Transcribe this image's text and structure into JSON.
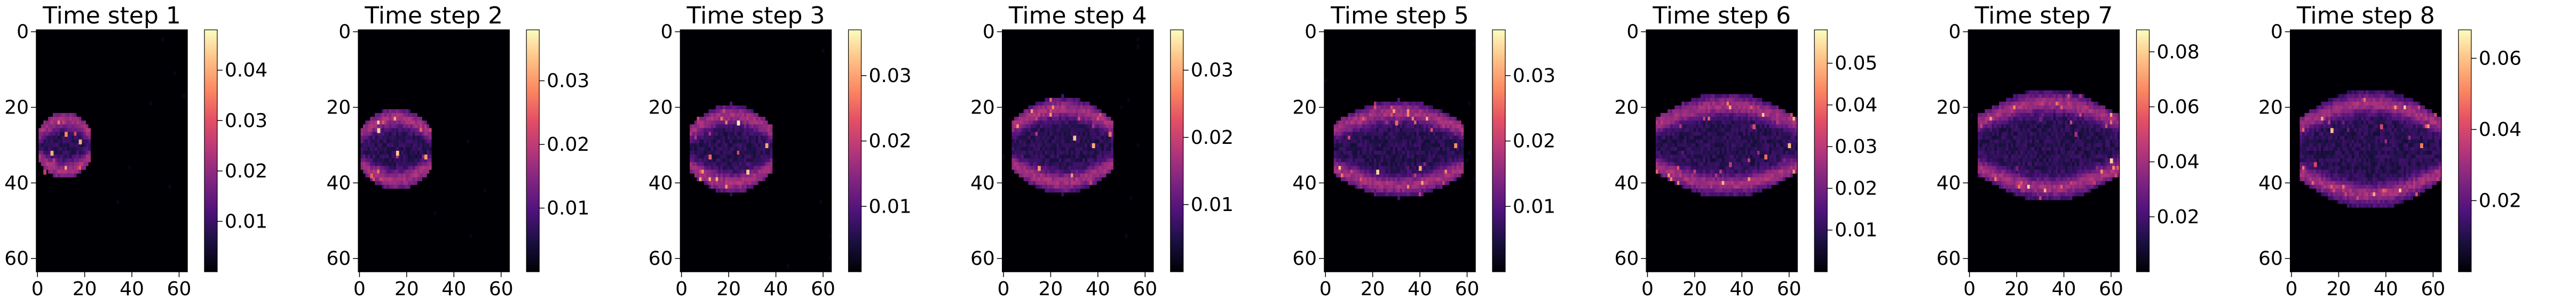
{
  "chart_data": [
    {
      "type": "heatmap",
      "title": "Time step 1",
      "colormap": "magma",
      "grid_size": [
        64,
        64
      ],
      "xlim": [
        0,
        64
      ],
      "ylim": [
        64,
        0
      ],
      "x_ticks": [
        "0",
        "20",
        "40",
        "60"
      ],
      "y_ticks": [
        "0",
        "20",
        "40",
        "60"
      ],
      "colorbar_range": [
        0,
        0.048
      ],
      "colorbar_ticks": [
        "0.01",
        "0.02",
        "0.03",
        "0.04"
      ],
      "hotspots": [
        {
          "x": 6,
          "y": 32,
          "value": 0.04
        },
        {
          "x": 12,
          "y": 27,
          "value": 0.036
        },
        {
          "x": 18,
          "y": 29,
          "value": 0.04
        },
        {
          "x": 3,
          "y": 37,
          "value": 0.025
        }
      ]
    },
    {
      "type": "heatmap",
      "title": "Time step 2",
      "colormap": "magma",
      "grid_size": [
        64,
        64
      ],
      "xlim": [
        0,
        64
      ],
      "ylim": [
        64,
        0
      ],
      "x_ticks": [
        "0",
        "20",
        "40",
        "60"
      ],
      "y_ticks": [
        "0",
        "20",
        "40",
        "60"
      ],
      "colorbar_range": [
        0,
        0.038
      ],
      "colorbar_ticks": [
        "0.01",
        "0.02",
        "0.03"
      ],
      "hotspots": [
        {
          "x": 8,
          "y": 26,
          "value": 0.035
        },
        {
          "x": 16,
          "y": 32,
          "value": 0.034
        },
        {
          "x": 28,
          "y": 33,
          "value": 0.03
        },
        {
          "x": 5,
          "y": 38,
          "value": 0.025
        }
      ]
    },
    {
      "type": "heatmap",
      "title": "Time step 3",
      "colormap": "magma",
      "grid_size": [
        64,
        64
      ],
      "xlim": [
        0,
        64
      ],
      "ylim": [
        64,
        0
      ],
      "x_ticks": [
        "0",
        "20",
        "40",
        "60"
      ],
      "y_ticks": [
        "0",
        "20",
        "40",
        "60"
      ],
      "colorbar_range": [
        0,
        0.037
      ],
      "colorbar_ticks": [
        "0.01",
        "0.02",
        "0.03"
      ],
      "hotspots": [
        {
          "x": 24,
          "y": 24,
          "value": 0.036
        },
        {
          "x": 28,
          "y": 37,
          "value": 0.033
        },
        {
          "x": 36,
          "y": 30,
          "value": 0.03
        },
        {
          "x": 12,
          "y": 33,
          "value": 0.025
        }
      ]
    },
    {
      "type": "heatmap",
      "title": "Time step 4",
      "colormap": "magma",
      "grid_size": [
        64,
        64
      ],
      "xlim": [
        0,
        64
      ],
      "ylim": [
        64,
        0
      ],
      "x_ticks": [
        "0",
        "20",
        "40",
        "60"
      ],
      "y_ticks": [
        "0",
        "20",
        "40",
        "60"
      ],
      "colorbar_range": [
        0,
        0.036
      ],
      "colorbar_ticks": [
        "0.01",
        "0.02",
        "0.03"
      ],
      "hotspots": [
        {
          "x": 30,
          "y": 28,
          "value": 0.032
        },
        {
          "x": 38,
          "y": 30,
          "value": 0.03
        },
        {
          "x": 15,
          "y": 36,
          "value": 0.028
        },
        {
          "x": 45,
          "y": 27,
          "value": 0.025
        }
      ]
    },
    {
      "type": "heatmap",
      "title": "Time step 5",
      "colormap": "magma",
      "grid_size": [
        64,
        64
      ],
      "xlim": [
        0,
        64
      ],
      "ylim": [
        64,
        0
      ],
      "x_ticks": [
        "0",
        "20",
        "40",
        "60"
      ],
      "y_ticks": [
        "0",
        "20",
        "40",
        "60"
      ],
      "colorbar_range": [
        0,
        0.037
      ],
      "colorbar_ticks": [
        "0.01",
        "0.02",
        "0.03"
      ],
      "hotspots": [
        {
          "x": 22,
          "y": 37,
          "value": 0.034
        },
        {
          "x": 40,
          "y": 36,
          "value": 0.03
        },
        {
          "x": 55,
          "y": 30,
          "value": 0.028
        },
        {
          "x": 30,
          "y": 24,
          "value": 0.025
        }
      ]
    },
    {
      "type": "heatmap",
      "title": "Time step 6",
      "colormap": "magma",
      "grid_size": [
        64,
        64
      ],
      "xlim": [
        0,
        64
      ],
      "ylim": [
        64,
        0
      ],
      "x_ticks": [
        "0",
        "20",
        "40",
        "60"
      ],
      "y_ticks": [
        "0",
        "20",
        "40",
        "60"
      ],
      "colorbar_range": [
        0,
        0.058
      ],
      "colorbar_ticks": [
        "0.01",
        "0.02",
        "0.03",
        "0.04",
        "0.05"
      ],
      "hotspots": [
        {
          "x": 60,
          "y": 30,
          "value": 0.05
        },
        {
          "x": 50,
          "y": 33,
          "value": 0.04
        },
        {
          "x": 45,
          "y": 25,
          "value": 0.035
        },
        {
          "x": 35,
          "y": 35,
          "value": 0.03
        }
      ]
    },
    {
      "type": "heatmap",
      "title": "Time step 7",
      "colormap": "magma",
      "grid_size": [
        64,
        64
      ],
      "xlim": [
        0,
        64
      ],
      "ylim": [
        64,
        0
      ],
      "x_ticks": [
        "0",
        "20",
        "40",
        "60"
      ],
      "y_ticks": [
        "0",
        "20",
        "40",
        "60"
      ],
      "colorbar_range": [
        0,
        0.088
      ],
      "colorbar_ticks": [
        "0.02",
        "0.04",
        "0.06",
        "0.08"
      ],
      "hotspots": [
        {
          "x": 60,
          "y": 34,
          "value": 0.08
        },
        {
          "x": 45,
          "y": 27,
          "value": 0.04
        },
        {
          "x": 30,
          "y": 23,
          "value": 0.03
        },
        {
          "x": 20,
          "y": 36,
          "value": 0.03
        }
      ]
    },
    {
      "type": "heatmap",
      "title": "Time step 8",
      "colormap": "magma",
      "grid_size": [
        64,
        64
      ],
      "xlim": [
        0,
        64
      ],
      "ylim": [
        64,
        0
      ],
      "x_ticks": [
        "0",
        "20",
        "40",
        "60"
      ],
      "y_ticks": [
        "0",
        "20",
        "40",
        "60"
      ],
      "colorbar_range": [
        0,
        0.068
      ],
      "colorbar_ticks": [
        "0.02",
        "0.04",
        "0.06"
      ],
      "hotspots": [
        {
          "x": 17,
          "y": 26,
          "value": 0.06
        },
        {
          "x": 55,
          "y": 30,
          "value": 0.05
        },
        {
          "x": 38,
          "y": 25,
          "value": 0.04
        },
        {
          "x": 10,
          "y": 35,
          "value": 0.04
        }
      ]
    }
  ]
}
